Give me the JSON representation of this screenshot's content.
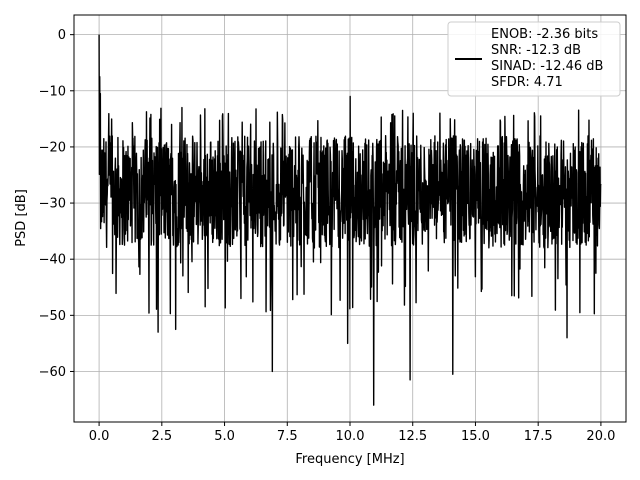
{
  "chart_data": {
    "type": "line",
    "xlabel": "Frequency [MHz]",
    "ylabel": "PSD [dB]",
    "xlim": [
      -1.0,
      21.0
    ],
    "ylim": [
      -69.0,
      3.5
    ],
    "xticks": [
      0.0,
      2.5,
      5.0,
      7.5,
      10.0,
      12.5,
      15.0,
      17.5,
      20.0
    ],
    "xtick_labels": [
      "0.0",
      "2.5",
      "5.0",
      "7.5",
      "10.0",
      "12.5",
      "15.0",
      "17.5",
      "20.0"
    ],
    "yticks": [
      0,
      -10,
      -20,
      -30,
      -40,
      -50,
      -60
    ],
    "ytick_labels": [
      "0",
      "−10",
      "−20",
      "−30",
      "−40",
      "−50",
      "−60"
    ],
    "grid": true,
    "legend_position": "top-right",
    "line_color": "#000000",
    "legend_entries": [
      "ENOB: -2.36 bits",
      "SNR: -12.3 dB",
      "SINAD: -12.46 dB",
      "SFDR: 4.71"
    ],
    "series": [
      {
        "x_range": [
          0.0,
          20.0
        ],
        "noise_band": [
          -38,
          -18
        ],
        "peaks": [
          {
            "x": 0.0,
            "y": 0.0
          },
          {
            "x": 0.02,
            "y": -7.5
          },
          {
            "x": 0.05,
            "y": -10.5
          },
          {
            "x": 3.3,
            "y": -13.0
          },
          {
            "x": 10.0,
            "y": -11.0
          },
          {
            "x": 12.1,
            "y": -13.5
          },
          {
            "x": 14.0,
            "y": -15.0
          }
        ],
        "dips": [
          {
            "x": 2.35,
            "y": -53.0
          },
          {
            "x": 3.05,
            "y": -52.5
          },
          {
            "x": 6.9,
            "y": -60.0
          },
          {
            "x": 9.9,
            "y": -55.0
          },
          {
            "x": 10.95,
            "y": -66.0
          },
          {
            "x": 12.4,
            "y": -61.5
          },
          {
            "x": 14.1,
            "y": -60.5
          },
          {
            "x": 18.65,
            "y": -54.0
          }
        ]
      }
    ]
  }
}
